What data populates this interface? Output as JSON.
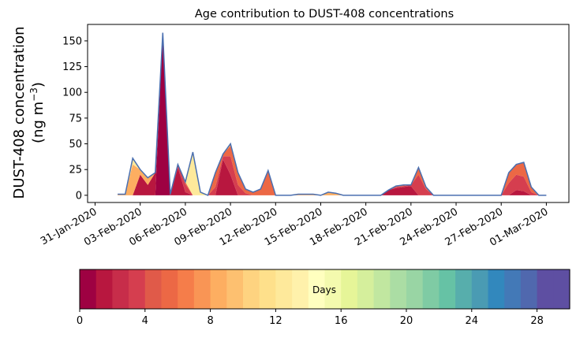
{
  "chart_data": {
    "type": "area",
    "title": "Age contribution to DUST-408 concentrations",
    "ylabel_line1": "DUST-408 concentration",
    "ylabel_line2": "(ng m",
    "ylabel_sup": "−3",
    "ylabel_close": ")",
    "xlabel": "",
    "ylim": [
      -7,
      166
    ],
    "yticks": [
      0,
      25,
      50,
      75,
      100,
      125,
      150
    ],
    "xlim": [
      "2020-01-30T12:00",
      "2020-03-02T12:00"
    ],
    "xticks": [
      "2020-01-31",
      "2020-02-03",
      "2020-02-06",
      "2020-02-09",
      "2020-02-12",
      "2020-02-15",
      "2020-02-18",
      "2020-02-21",
      "2020-02-24",
      "2020-02-27",
      "2020-03-01"
    ],
    "xtick_labels": [
      "31-Jan-2020",
      "03-Feb-2020",
      "06-Feb-2020",
      "09-Feb-2020",
      "12-Feb-2020",
      "15-Feb-2020",
      "18-Feb-2020",
      "21-Feb-2020",
      "24-Feb-2020",
      "27-Feb-2020",
      "01-Mar-2020"
    ],
    "total_series_color": "#4a6fb0",
    "series": [
      {
        "dates": [
          "2020-02-01T12:00",
          "2020-02-02",
          "2020-02-02T12:00",
          "2020-02-03",
          "2020-02-03T12:00",
          "2020-02-04",
          "2020-02-04T12:00",
          "2020-02-05",
          "2020-02-05T12:00",
          "2020-02-06",
          "2020-02-06T12:00",
          "2020-02-07",
          "2020-02-07T12:00",
          "2020-02-08",
          "2020-02-08T12:00",
          "2020-02-09",
          "2020-02-09T12:00",
          "2020-02-10",
          "2020-02-10T12:00",
          "2020-02-11",
          "2020-02-11T12:00",
          "2020-02-12",
          "2020-02-12T12:00",
          "2020-02-13",
          "2020-02-13T12:00",
          "2020-02-14",
          "2020-02-14T12:00",
          "2020-02-15",
          "2020-02-15T12:00",
          "2020-02-16",
          "2020-02-16T12:00",
          "2020-02-17",
          "2020-02-17T12:00",
          "2020-02-18",
          "2020-02-18T12:00",
          "2020-02-19",
          "2020-02-19T12:00",
          "2020-02-20",
          "2020-02-20T12:00",
          "2020-02-21",
          "2020-02-21T12:00",
          "2020-02-22",
          "2020-02-22T12:00",
          "2020-02-23",
          "2020-02-23T12:00",
          "2020-02-24",
          "2020-02-24T12:00",
          "2020-02-25",
          "2020-02-25T12:00",
          "2020-02-26",
          "2020-02-26T12:00",
          "2020-02-27",
          "2020-02-27T12:00",
          "2020-02-28",
          "2020-02-28T12:00",
          "2020-02-29",
          "2020-02-29T12:00",
          "2020-03-01"
        ]
      },
      {
        "name": "total",
        "values": [
          1,
          1,
          36,
          25,
          17,
          22,
          158,
          1,
          30,
          13,
          42,
          3,
          0,
          22,
          40,
          50,
          22,
          6,
          3,
          6,
          24,
          0,
          0,
          0,
          1,
          1,
          1,
          0,
          3,
          2,
          0,
          0,
          0,
          0,
          0,
          0,
          5,
          9,
          10,
          10,
          27,
          8,
          0,
          0,
          0,
          0,
          0,
          0,
          0,
          0,
          0,
          0,
          22,
          30,
          32,
          8,
          0,
          0
        ]
      }
    ],
    "stack_layers": [
      {
        "age_days": 0,
        "values": [
          0,
          0,
          0,
          0,
          0,
          0,
          158,
          0,
          0,
          0,
          0,
          0,
          0,
          0,
          0,
          0,
          0,
          0,
          0,
          0,
          0,
          0,
          0,
          0,
          0,
          0,
          0,
          0,
          0,
          0,
          0,
          0,
          0,
          0,
          0,
          0,
          0,
          0,
          0,
          0,
          0,
          0,
          0,
          0,
          0,
          0,
          0,
          0,
          0,
          0,
          0,
          0,
          0,
          0,
          0,
          0,
          0,
          0
        ]
      },
      {
        "age_days": 1,
        "values": [
          0,
          0,
          0,
          20,
          10,
          22,
          0,
          0,
          27,
          3,
          0,
          0,
          0,
          0,
          35,
          20,
          0,
          0,
          0,
          0,
          0,
          0,
          0,
          0,
          0,
          0,
          0,
          0,
          0,
          0,
          0,
          0,
          0,
          0,
          0,
          0,
          5,
          7,
          8,
          9,
          0,
          0,
          0,
          0,
          0,
          0,
          0,
          0,
          0,
          0,
          0,
          0,
          0,
          5,
          4,
          0,
          0,
          0
        ]
      },
      {
        "age_days": 3,
        "values": [
          0,
          0,
          0,
          0,
          0,
          0,
          0,
          0,
          3,
          8,
          0,
          0,
          0,
          8,
          3,
          18,
          10,
          2,
          0,
          0,
          0,
          0,
          0,
          0,
          0,
          0,
          0,
          0,
          0,
          0,
          0,
          0,
          0,
          0,
          0,
          0,
          0,
          1,
          1,
          1,
          20,
          6,
          0,
          0,
          0,
          0,
          0,
          0,
          0,
          0,
          0,
          0,
          12,
          15,
          14,
          3,
          0,
          0
        ]
      },
      {
        "age_days": 5,
        "values": [
          0,
          0,
          0,
          0,
          0,
          0,
          0,
          0,
          0,
          2,
          0,
          0,
          0,
          14,
          2,
          10,
          12,
          4,
          3,
          6,
          24,
          0,
          0,
          0,
          0,
          0,
          0,
          0,
          0,
          0,
          0,
          0,
          0,
          0,
          0,
          0,
          0,
          1,
          1,
          0,
          7,
          2,
          0,
          0,
          0,
          0,
          0,
          0,
          0,
          0,
          0,
          0,
          10,
          10,
          14,
          5,
          0,
          0
        ]
      },
      {
        "age_days": 8,
        "values": [
          1,
          1,
          30,
          5,
          7,
          0,
          0,
          1,
          0,
          0,
          0,
          0,
          0,
          0,
          0,
          2,
          0,
          0,
          0,
          0,
          0,
          0,
          0,
          0,
          1,
          1,
          1,
          0,
          3,
          2,
          0,
          0,
          0,
          0,
          0,
          0,
          0,
          0,
          0,
          0,
          0,
          0,
          0,
          0,
          0,
          0,
          0,
          0,
          0,
          0,
          0,
          0,
          0,
          0,
          0,
          0,
          0,
          0
        ]
      },
      {
        "age_days": 12,
        "values": [
          0,
          0,
          6,
          0,
          0,
          0,
          0,
          0,
          0,
          0,
          42,
          3,
          0,
          0,
          0,
          0,
          0,
          0,
          0,
          0,
          0,
          0,
          0,
          0,
          0,
          0,
          0,
          0,
          0,
          0,
          0,
          0,
          0,
          0,
          0,
          0,
          0,
          0,
          0,
          0,
          0,
          0,
          0,
          0,
          0,
          0,
          0,
          0,
          0,
          0,
          0,
          0,
          0,
          0,
          0,
          0,
          0,
          0
        ]
      }
    ],
    "colorbar": {
      "label": "Days",
      "ticks": [
        0,
        4,
        8,
        12,
        16,
        20,
        24,
        28
      ],
      "range": [
        0,
        30
      ],
      "colors": [
        "#9e0142",
        "#b8173f",
        "#c72d4a",
        "#d53e4f",
        "#e05a49",
        "#ec6845",
        "#f57d4a",
        "#f99555",
        "#fdae61",
        "#fdc070",
        "#fed380",
        "#fee08b",
        "#fee99b",
        "#fff1ab",
        "#ffffbf",
        "#f4faae",
        "#e6f598",
        "#d5ef9c",
        "#c1e7a0",
        "#abdda4",
        "#99d5a4",
        "#7fcba4",
        "#66c2a5",
        "#57aeac",
        "#4a9bb3",
        "#3288bd",
        "#4379b7",
        "#5068ae",
        "#5e4fa2",
        "#5e4fa2"
      ]
    }
  }
}
